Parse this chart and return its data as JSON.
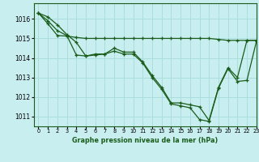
{
  "title": "Graphe pression niveau de la mer (hPa)",
  "background_color": "#c8eef0",
  "grid_color": "#aadddd",
  "line_color": "#1a5c1a",
  "marker_color": "#1a5c1a",
  "xlim": [
    -0.5,
    23
  ],
  "ylim": [
    1010.5,
    1016.8
  ],
  "yticks": [
    1011,
    1012,
    1013,
    1014,
    1015,
    1016
  ],
  "xticks": [
    0,
    1,
    2,
    3,
    4,
    5,
    6,
    7,
    8,
    9,
    10,
    11,
    12,
    13,
    14,
    15,
    16,
    17,
    18,
    19,
    20,
    21,
    22,
    23
  ],
  "line1": [
    1016.3,
    1016.1,
    1015.7,
    1015.2,
    1014.8,
    1014.1,
    1014.2,
    1014.2,
    1014.5,
    1014.3,
    1014.3,
    1013.8,
    1013.1,
    1012.5,
    1011.7,
    1011.7,
    1011.6,
    1011.5,
    1010.8,
    1012.5,
    1013.5,
    1013.0,
    1014.9,
    1014.9
  ],
  "line2": [
    1016.3,
    1015.9,
    1015.4,
    1015.15,
    1014.15,
    1014.1,
    1014.15,
    1014.2,
    1014.35,
    1014.2,
    1014.2,
    1013.75,
    1013.0,
    1012.4,
    1011.65,
    1011.55,
    1011.45,
    1010.85,
    1010.75,
    1012.45,
    1013.45,
    1012.8,
    1012.85,
    1014.85
  ],
  "line3": [
    1016.3,
    1015.75,
    1015.15,
    1015.12,
    1015.05,
    1015.0,
    1015.0,
    1015.0,
    1015.0,
    1015.0,
    1015.0,
    1015.0,
    1015.0,
    1015.0,
    1015.0,
    1015.0,
    1015.0,
    1015.0,
    1015.0,
    1014.95,
    1014.9,
    1014.9,
    1014.9,
    1014.9
  ]
}
